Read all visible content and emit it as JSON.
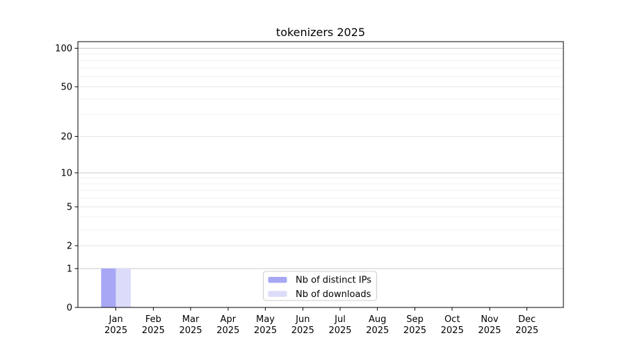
{
  "chart_data": {
    "type": "bar",
    "title": "tokenizers 2025",
    "x_tick_months": [
      "Jan",
      "Feb",
      "Mar",
      "Apr",
      "May",
      "Jun",
      "Jul",
      "Aug",
      "Sep",
      "Oct",
      "Nov",
      "Dec"
    ],
    "x_tick_year": "2025",
    "series": [
      {
        "name": "Nb of distinct IPs",
        "color": "#a7a7f6",
        "values": [
          1,
          0,
          0,
          0,
          0,
          0,
          0,
          0,
          0,
          0,
          0,
          0
        ]
      },
      {
        "name": "Nb of downloads",
        "color": "#dcdcfa",
        "values": [
          1,
          0,
          0,
          0,
          0,
          0,
          0,
          0,
          0,
          0,
          0,
          0
        ]
      }
    ],
    "yscale": "log1p",
    "ylim": [
      0,
      113
    ],
    "yticks": [
      0,
      1,
      2,
      5,
      10,
      20,
      50,
      100
    ],
    "yticks_minor": [
      3,
      4,
      6,
      7,
      8,
      9,
      30,
      40,
      60,
      70,
      80,
      90
    ],
    "grid": "horizontal",
    "legend": {
      "position": "lower-center",
      "labels": [
        "Nb of distinct IPs",
        "Nb of downloads"
      ]
    },
    "colors": {
      "bar_distinct_ips": "#a7a7f6",
      "bar_downloads": "#dcdcfa",
      "grid_major": "#c8c8c8",
      "grid_labeled": "#e6e6e6",
      "grid_minor": "#f1f1f1",
      "spine": "#000000",
      "text": "#000000",
      "legend_border": "#cccccc",
      "background": "#ffffff"
    }
  }
}
